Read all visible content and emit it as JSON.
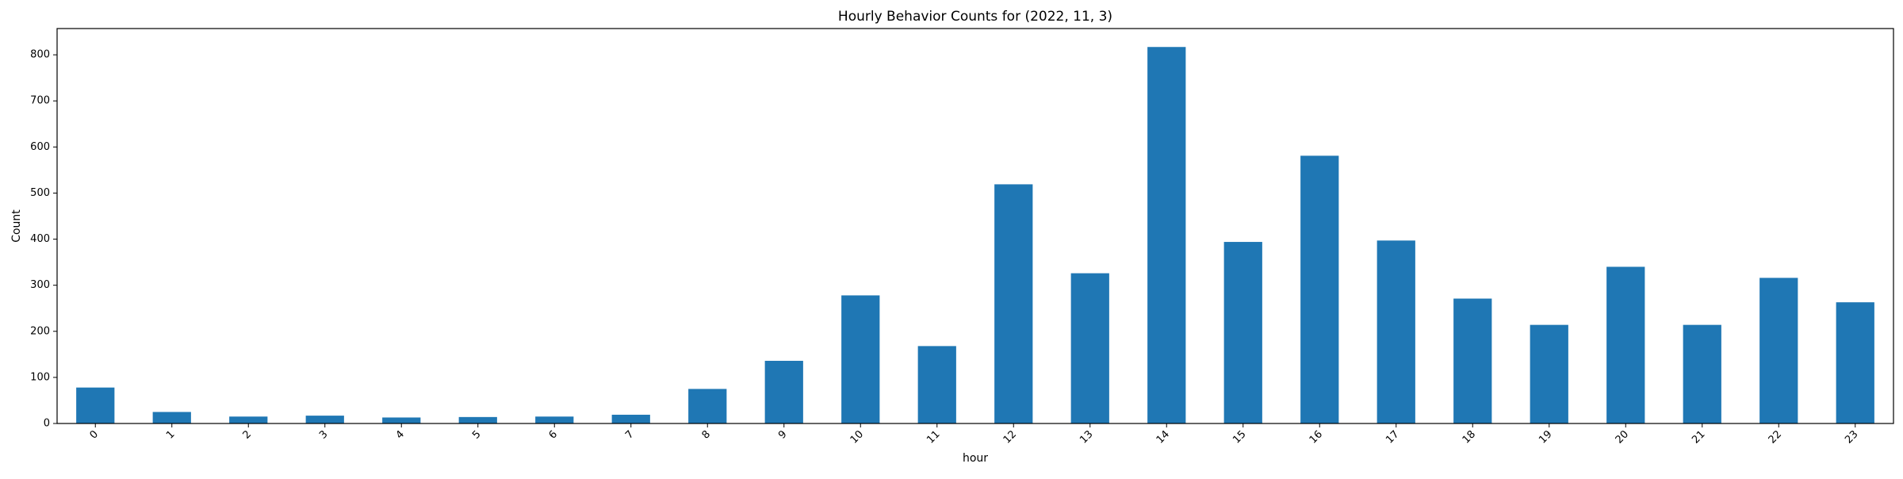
{
  "chart_data": {
    "type": "bar",
    "title": "Hourly Behavior Counts for (2022, 11, 3)",
    "xlabel": "hour",
    "ylabel": "Count",
    "categories": [
      "0",
      "1",
      "2",
      "3",
      "4",
      "5",
      "6",
      "7",
      "8",
      "9",
      "10",
      "11",
      "12",
      "13",
      "14",
      "15",
      "16",
      "17",
      "18",
      "19",
      "20",
      "21",
      "22",
      "23"
    ],
    "values": [
      78,
      25,
      15,
      17,
      13,
      14,
      15,
      19,
      75,
      136,
      278,
      168,
      519,
      326,
      817,
      394,
      581,
      397,
      271,
      214,
      340,
      214,
      316,
      263
    ],
    "ylim": [
      0,
      857
    ],
    "yticks": [
      0,
      100,
      200,
      300,
      400,
      500,
      600,
      700,
      800
    ],
    "bar_color": "#1f77b4",
    "grid": false,
    "legend": false
  }
}
